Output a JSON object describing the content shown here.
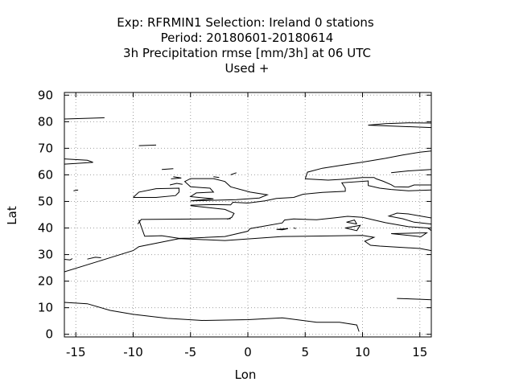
{
  "chart_data": {
    "type": "map",
    "title_lines": [
      "Exp: RFRMIN1   Selection: Ireland      0 stations",
      "Period: 20180601-20180614",
      "3h Precipitation rmse [mm/3h] at  06 UTC",
      "Used   +"
    ],
    "xlabel": "Lon",
    "ylabel": "Lat",
    "xlim": [
      -16,
      16
    ],
    "ylim": [
      -1,
      91
    ],
    "xticks": [
      -15,
      -10,
      -5,
      0,
      5,
      10,
      15
    ],
    "yticks": [
      0,
      10,
      20,
      30,
      40,
      50,
      60,
      70,
      80,
      90
    ],
    "grid": true,
    "points": [],
    "coastlines": [
      [
        [
          -16,
          12
        ],
        [
          -14,
          11.5
        ],
        [
          -12,
          9
        ],
        [
          -10,
          7.5
        ],
        [
          -7,
          6
        ],
        [
          -4,
          5.2
        ],
        [
          0,
          5.5
        ],
        [
          3,
          6.2
        ],
        [
          6,
          4.5
        ],
        [
          8,
          4.5
        ],
        [
          9.5,
          3.5
        ],
        [
          9.7,
          1
        ]
      ],
      [
        [
          -16,
          23.5
        ],
        [
          -13,
          27.5
        ],
        [
          -10,
          31.5
        ],
        [
          -9.5,
          33
        ],
        [
          -6,
          36
        ],
        [
          -2,
          35.3
        ],
        [
          3,
          36.8
        ],
        [
          7,
          37
        ],
        [
          10,
          37.2
        ],
        [
          11,
          36.5
        ],
        [
          10.2,
          35
        ],
        [
          10.7,
          33.5
        ],
        [
          11.5,
          33.2
        ],
        [
          15,
          32.3
        ],
        [
          16,
          31.5
        ]
      ],
      [
        [
          -9.5,
          43
        ],
        [
          -9,
          36.9
        ],
        [
          -7.5,
          37.1
        ],
        [
          -6,
          36.1
        ],
        [
          -5,
          36.2
        ],
        [
          -2,
          36.8
        ],
        [
          0,
          38.8
        ],
        [
          0.2,
          39.8
        ],
        [
          3,
          41.9
        ],
        [
          3.2,
          43
        ],
        [
          4,
          43.4
        ],
        [
          6,
          43.1
        ],
        [
          7.5,
          43.8
        ],
        [
          8.7,
          44.4
        ],
        [
          10,
          44
        ],
        [
          12,
          42
        ],
        [
          14,
          40.5
        ],
        [
          15.7,
          40
        ],
        [
          16,
          39
        ]
      ],
      [
        [
          -1.5,
          43.5
        ],
        [
          -9.3,
          43.2
        ],
        [
          -9.6,
          41.5
        ]
      ],
      [
        [
          16,
          41.5
        ],
        [
          14.5,
          42.2
        ],
        [
          13.5,
          43.5
        ],
        [
          12.3,
          44.5
        ],
        [
          13,
          45.6
        ],
        [
          14,
          45.3
        ],
        [
          16,
          43.8
        ]
      ],
      [
        [
          -10,
          51.5
        ],
        [
          -9.5,
          53.5
        ],
        [
          -8,
          54.8
        ],
        [
          -6,
          55
        ],
        [
          -6,
          53.5
        ],
        [
          -6.3,
          52.2
        ],
        [
          -8,
          51.5
        ],
        [
          -10,
          51.5
        ]
      ],
      [
        [
          -5,
          50.2
        ],
        [
          -3,
          51
        ],
        [
          -5,
          51.8
        ],
        [
          -4.5,
          53.2
        ],
        [
          -3,
          53.5
        ],
        [
          -3.3,
          55
        ],
        [
          -5,
          55.5
        ],
        [
          -5.5,
          57.5
        ],
        [
          -5,
          58.6
        ],
        [
          -3,
          58.6
        ],
        [
          -2,
          57.5
        ],
        [
          -1.5,
          55.5
        ],
        [
          0.2,
          53.5
        ],
        [
          1.7,
          52.5
        ],
        [
          1,
          51.3
        ],
        [
          -1,
          50.7
        ],
        [
          -5,
          50.2
        ]
      ],
      [
        [
          -5,
          48.4
        ],
        [
          -2,
          47
        ],
        [
          -1.2,
          45.5
        ],
        [
          -1.4,
          44
        ],
        [
          -1.8,
          43.3
        ]
      ],
      [
        [
          -5,
          48.6
        ],
        [
          -3,
          48.8
        ],
        [
          -1.5,
          48.7
        ],
        [
          -1.3,
          49.7
        ],
        [
          0,
          49.4
        ],
        [
          1.5,
          50.2
        ],
        [
          2.5,
          51.1
        ],
        [
          4,
          51.5
        ],
        [
          4.8,
          52.7
        ],
        [
          6.5,
          53.4
        ],
        [
          8.5,
          53.8
        ],
        [
          8.5,
          55
        ],
        [
          8.2,
          57
        ],
        [
          10.5,
          57.7
        ],
        [
          10.5,
          56
        ],
        [
          11.5,
          55
        ],
        [
          12.5,
          54.5
        ],
        [
          14,
          54
        ],
        [
          16,
          54.3
        ]
      ],
      [
        [
          5,
          58.5
        ],
        [
          5.2,
          61
        ],
        [
          6.5,
          62.5
        ],
        [
          8,
          63.5
        ],
        [
          10,
          64.8
        ],
        [
          12,
          66.2
        ],
        [
          13.5,
          67.5
        ],
        [
          15,
          68.5
        ],
        [
          16,
          69
        ]
      ],
      [
        [
          5,
          58.5
        ],
        [
          7,
          58
        ],
        [
          8.5,
          58.4
        ],
        [
          10,
          59
        ],
        [
          11,
          59
        ],
        [
          11.2,
          58.5
        ],
        [
          11.8,
          57.6
        ],
        [
          12.5,
          56.3
        ],
        [
          12.8,
          55.5
        ],
        [
          14,
          55.4
        ],
        [
          14.5,
          56.2
        ],
        [
          16,
          56.2
        ]
      ],
      [
        [
          16,
          62
        ],
        [
          14,
          61.5
        ],
        [
          12.5,
          60.8
        ]
      ],
      [
        [
          -24,
          66
        ],
        [
          -22,
          65
        ],
        [
          -18,
          66
        ],
        [
          -16,
          66
        ],
        [
          -14,
          65.5
        ],
        [
          -13.5,
          64.7
        ],
        [
          -15,
          64.3
        ],
        [
          -18,
          63.5
        ],
        [
          -22,
          64
        ]
      ],
      [
        [
          -16,
          81
        ],
        [
          -14,
          81.3
        ],
        [
          -12.5,
          81.5
        ]
      ],
      [
        [
          10.5,
          78.7
        ],
        [
          12,
          79.3
        ],
        [
          14,
          79.6
        ],
        [
          16,
          79.5
        ]
      ],
      [
        [
          10.5,
          78.7
        ],
        [
          13,
          78.3
        ],
        [
          16,
          77.8
        ]
      ],
      [
        [
          13,
          13.5
        ],
        [
          15,
          13.2
        ],
        [
          16,
          13
        ]
      ],
      [
        [
          -16,
          28.2
        ],
        [
          -15.5,
          28.0
        ],
        [
          -15.3,
          28.5
        ]
      ],
      [
        [
          -14,
          28.3
        ],
        [
          -13.3,
          29
        ],
        [
          -12.8,
          28.8
        ]
      ],
      [
        [
          -15.2,
          54
        ],
        [
          -14.8,
          54.3
        ]
      ],
      [
        [
          -9.5,
          71
        ],
        [
          -8,
          71.2
        ]
      ],
      [
        [
          -7.5,
          62
        ],
        [
          -6.5,
          62.3
        ]
      ],
      [
        [
          -6.5,
          59.3
        ],
        [
          -5.8,
          58.8
        ],
        [
          -6.7,
          58.5
        ]
      ],
      [
        [
          -6.8,
          56.2
        ],
        [
          -6.2,
          56.8
        ],
        [
          -5.7,
          56.4
        ]
      ],
      [
        [
          -1.5,
          60
        ],
        [
          -1,
          60.8
        ]
      ],
      [
        [
          -2.5,
          59
        ],
        [
          -3,
          59.3
        ]
      ],
      [
        [
          2.5,
          39.5
        ],
        [
          3.5,
          39.8
        ],
        [
          3,
          39.3
        ],
        [
          2.5,
          39.5
        ]
      ],
      [
        [
          4,
          40
        ],
        [
          4.2,
          39.8
        ]
      ],
      [
        [
          8.5,
          40
        ],
        [
          9.8,
          41
        ],
        [
          9.5,
          39
        ],
        [
          8.5,
          40
        ]
      ],
      [
        [
          9.5,
          41.5
        ],
        [
          9.3,
          43
        ],
        [
          8.6,
          42.2
        ],
        [
          9.5,
          41.5
        ]
      ],
      [
        [
          12.5,
          37.9
        ],
        [
          15.6,
          38.2
        ],
        [
          15.1,
          36.7
        ],
        [
          12.5,
          37.9
        ]
      ]
    ]
  }
}
